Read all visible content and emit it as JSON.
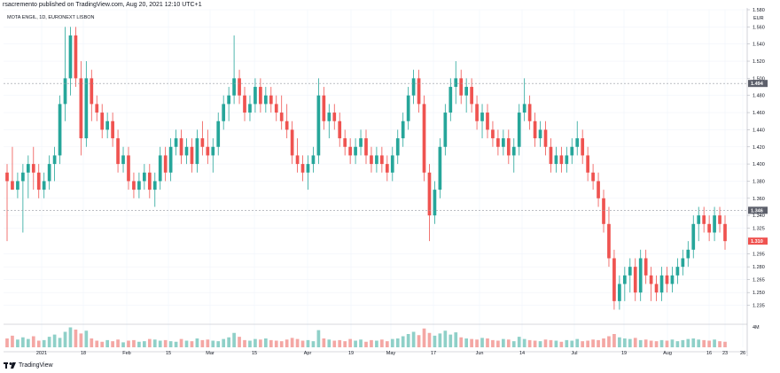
{
  "header": {
    "published_line": "rsacremento published on TradingView.com, Aug 20, 2021 12:10 UTC+1"
  },
  "footer": {
    "logo_text": "TradingView"
  },
  "colors": {
    "up": "#26a69a",
    "down": "#ef5350",
    "up_vol": "#8fd0c8",
    "down_vol": "#f4a7a4",
    "grid": "#f0f3fa",
    "axis_text": "#131722"
  },
  "chart_data": {
    "type": "candlestick",
    "title": "MOTA ENGIL, 1D, EURONEXT LISBON",
    "currency": "EUR",
    "ylim": [
      1.214,
      1.58
    ],
    "y_ticks": [
      "1.235",
      "1.250",
      "1.265",
      "1.280",
      "1.295",
      "1.325",
      "1.340",
      "1.360",
      "1.380",
      "1.400",
      "1.420",
      "1.440",
      "1.460",
      "1.480",
      "1.500",
      "1.520",
      "1.540",
      "1.560",
      "1.580"
    ],
    "x_tick_labels": [
      "2021",
      "18",
      "Feb",
      "15",
      "Mar",
      "15",
      "Apr",
      "19",
      "May",
      "17",
      "Jun",
      "14",
      "Jul",
      "19",
      "Aug",
      "16",
      "23",
      "26"
    ],
    "price_labels": [
      {
        "text": "1.494",
        "value": 1.494,
        "color": "#5d606b",
        "dashed": true
      },
      {
        "text": "1.346",
        "value": 1.346,
        "color": "#5d606b",
        "dashed": true
      },
      {
        "text": "1.310",
        "value": 1.31,
        "color": "#ef5350",
        "dashed": false
      }
    ],
    "volume_axis_label": "4M",
    "candles": [
      [
        1.39,
        1.4,
        1.31,
        1.38
      ],
      [
        1.38,
        1.42,
        1.37,
        1.37
      ],
      [
        1.37,
        1.39,
        1.36,
        1.38
      ],
      [
        1.38,
        1.4,
        1.32,
        1.39
      ],
      [
        1.39,
        1.41,
        1.36,
        1.4
      ],
      [
        1.4,
        1.42,
        1.37,
        1.39
      ],
      [
        1.39,
        1.4,
        1.36,
        1.37
      ],
      [
        1.37,
        1.39,
        1.36,
        1.38
      ],
      [
        1.38,
        1.41,
        1.37,
        1.4
      ],
      [
        1.4,
        1.42,
        1.38,
        1.41
      ],
      [
        1.41,
        1.48,
        1.4,
        1.47
      ],
      [
        1.47,
        1.56,
        1.45,
        1.5
      ],
      [
        1.5,
        1.56,
        1.48,
        1.55
      ],
      [
        1.55,
        1.56,
        1.49,
        1.5
      ],
      [
        1.5,
        1.52,
        1.41,
        1.43
      ],
      [
        1.43,
        1.52,
        1.42,
        1.5
      ],
      [
        1.5,
        1.51,
        1.45,
        1.47
      ],
      [
        1.47,
        1.48,
        1.45,
        1.46
      ],
      [
        1.46,
        1.47,
        1.43,
        1.44
      ],
      [
        1.44,
        1.46,
        1.43,
        1.45
      ],
      [
        1.45,
        1.46,
        1.42,
        1.43
      ],
      [
        1.43,
        1.44,
        1.39,
        1.4
      ],
      [
        1.4,
        1.42,
        1.39,
        1.41
      ],
      [
        1.41,
        1.42,
        1.37,
        1.38
      ],
      [
        1.38,
        1.39,
        1.36,
        1.37
      ],
      [
        1.37,
        1.39,
        1.36,
        1.38
      ],
      [
        1.38,
        1.4,
        1.37,
        1.39
      ],
      [
        1.39,
        1.4,
        1.36,
        1.37
      ],
      [
        1.37,
        1.39,
        1.35,
        1.38
      ],
      [
        1.38,
        1.42,
        1.37,
        1.41
      ],
      [
        1.41,
        1.42,
        1.38,
        1.39
      ],
      [
        1.39,
        1.43,
        1.38,
        1.42
      ],
      [
        1.42,
        1.44,
        1.41,
        1.43
      ],
      [
        1.43,
        1.44,
        1.4,
        1.41
      ],
      [
        1.41,
        1.43,
        1.4,
        1.42
      ],
      [
        1.42,
        1.43,
        1.39,
        1.4
      ],
      [
        1.4,
        1.44,
        1.39,
        1.43
      ],
      [
        1.43,
        1.45,
        1.41,
        1.42
      ],
      [
        1.42,
        1.44,
        1.4,
        1.41
      ],
      [
        1.41,
        1.43,
        1.39,
        1.42
      ],
      [
        1.42,
        1.46,
        1.41,
        1.45
      ],
      [
        1.45,
        1.48,
        1.44,
        1.47
      ],
      [
        1.47,
        1.49,
        1.45,
        1.48
      ],
      [
        1.48,
        1.55,
        1.47,
        1.5
      ],
      [
        1.5,
        1.51,
        1.47,
        1.48
      ],
      [
        1.48,
        1.49,
        1.45,
        1.46
      ],
      [
        1.46,
        1.48,
        1.45,
        1.47
      ],
      [
        1.47,
        1.5,
        1.46,
        1.49
      ],
      [
        1.49,
        1.5,
        1.46,
        1.47
      ],
      [
        1.47,
        1.49,
        1.46,
        1.48
      ],
      [
        1.48,
        1.49,
        1.46,
        1.47
      ],
      [
        1.47,
        1.48,
        1.45,
        1.46
      ],
      [
        1.46,
        1.48,
        1.44,
        1.45
      ],
      [
        1.45,
        1.47,
        1.43,
        1.44
      ],
      [
        1.44,
        1.45,
        1.4,
        1.41
      ],
      [
        1.41,
        1.43,
        1.39,
        1.4
      ],
      [
        1.4,
        1.41,
        1.38,
        1.39
      ],
      [
        1.39,
        1.41,
        1.37,
        1.4
      ],
      [
        1.4,
        1.42,
        1.39,
        1.41
      ],
      [
        1.41,
        1.5,
        1.4,
        1.48
      ],
      [
        1.48,
        1.49,
        1.44,
        1.45
      ],
      [
        1.45,
        1.47,
        1.43,
        1.46
      ],
      [
        1.46,
        1.47,
        1.44,
        1.45
      ],
      [
        1.45,
        1.46,
        1.42,
        1.43
      ],
      [
        1.43,
        1.44,
        1.41,
        1.42
      ],
      [
        1.42,
        1.43,
        1.4,
        1.41
      ],
      [
        1.41,
        1.43,
        1.4,
        1.42
      ],
      [
        1.42,
        1.44,
        1.41,
        1.43
      ],
      [
        1.43,
        1.44,
        1.4,
        1.41
      ],
      [
        1.41,
        1.42,
        1.39,
        1.4
      ],
      [
        1.4,
        1.42,
        1.39,
        1.41
      ],
      [
        1.41,
        1.42,
        1.39,
        1.4
      ],
      [
        1.4,
        1.41,
        1.38,
        1.39
      ],
      [
        1.39,
        1.42,
        1.38,
        1.41
      ],
      [
        1.41,
        1.44,
        1.4,
        1.43
      ],
      [
        1.43,
        1.46,
        1.42,
        1.45
      ],
      [
        1.45,
        1.49,
        1.44,
        1.48
      ],
      [
        1.48,
        1.51,
        1.47,
        1.5
      ],
      [
        1.5,
        1.51,
        1.46,
        1.47
      ],
      [
        1.47,
        1.48,
        1.38,
        1.39
      ],
      [
        1.39,
        1.4,
        1.31,
        1.34
      ],
      [
        1.34,
        1.38,
        1.33,
        1.37
      ],
      [
        1.37,
        1.43,
        1.36,
        1.42
      ],
      [
        1.42,
        1.47,
        1.41,
        1.46
      ],
      [
        1.46,
        1.5,
        1.45,
        1.49
      ],
      [
        1.49,
        1.52,
        1.47,
        1.5
      ],
      [
        1.5,
        1.51,
        1.47,
        1.48
      ],
      [
        1.48,
        1.5,
        1.46,
        1.49
      ],
      [
        1.49,
        1.5,
        1.46,
        1.47
      ],
      [
        1.47,
        1.48,
        1.44,
        1.45
      ],
      [
        1.45,
        1.47,
        1.43,
        1.46
      ],
      [
        1.46,
        1.47,
        1.43,
        1.44
      ],
      [
        1.44,
        1.45,
        1.42,
        1.43
      ],
      [
        1.43,
        1.44,
        1.41,
        1.42
      ],
      [
        1.42,
        1.44,
        1.41,
        1.43
      ],
      [
        1.43,
        1.44,
        1.4,
        1.41
      ],
      [
        1.41,
        1.43,
        1.39,
        1.42
      ],
      [
        1.42,
        1.47,
        1.41,
        1.46
      ],
      [
        1.46,
        1.5,
        1.45,
        1.47
      ],
      [
        1.47,
        1.48,
        1.44,
        1.45
      ],
      [
        1.45,
        1.46,
        1.42,
        1.43
      ],
      [
        1.43,
        1.45,
        1.42,
        1.44
      ],
      [
        1.44,
        1.45,
        1.41,
        1.42
      ],
      [
        1.42,
        1.43,
        1.39,
        1.4
      ],
      [
        1.4,
        1.42,
        1.39,
        1.41
      ],
      [
        1.41,
        1.42,
        1.39,
        1.4
      ],
      [
        1.4,
        1.42,
        1.39,
        1.41
      ],
      [
        1.41,
        1.43,
        1.4,
        1.42
      ],
      [
        1.42,
        1.45,
        1.41,
        1.43
      ],
      [
        1.43,
        1.44,
        1.4,
        1.41
      ],
      [
        1.41,
        1.42,
        1.38,
        1.39
      ],
      [
        1.39,
        1.4,
        1.37,
        1.38
      ],
      [
        1.38,
        1.39,
        1.35,
        1.36
      ],
      [
        1.36,
        1.37,
        1.32,
        1.33
      ],
      [
        1.33,
        1.35,
        1.28,
        1.29
      ],
      [
        1.29,
        1.3,
        1.23,
        1.24
      ],
      [
        1.24,
        1.27,
        1.23,
        1.26
      ],
      [
        1.26,
        1.28,
        1.24,
        1.27
      ],
      [
        1.27,
        1.29,
        1.25,
        1.28
      ],
      [
        1.28,
        1.29,
        1.24,
        1.25
      ],
      [
        1.25,
        1.3,
        1.24,
        1.29
      ],
      [
        1.29,
        1.3,
        1.26,
        1.27
      ],
      [
        1.27,
        1.28,
        1.24,
        1.26
      ],
      [
        1.26,
        1.27,
        1.24,
        1.25
      ],
      [
        1.25,
        1.28,
        1.24,
        1.27
      ],
      [
        1.27,
        1.28,
        1.25,
        1.26
      ],
      [
        1.26,
        1.28,
        1.25,
        1.27
      ],
      [
        1.27,
        1.29,
        1.26,
        1.28
      ],
      [
        1.28,
        1.3,
        1.27,
        1.29
      ],
      [
        1.29,
        1.31,
        1.28,
        1.3
      ],
      [
        1.3,
        1.34,
        1.29,
        1.33
      ],
      [
        1.33,
        1.35,
        1.31,
        1.34
      ],
      [
        1.34,
        1.35,
        1.32,
        1.33
      ],
      [
        1.33,
        1.34,
        1.31,
        1.32
      ],
      [
        1.32,
        1.35,
        1.31,
        1.34
      ],
      [
        1.34,
        1.35,
        1.32,
        1.33
      ],
      [
        1.33,
        1.34,
        1.3,
        1.31
      ]
    ],
    "volumes": [
      1.6,
      2.1,
      1.4,
      1.8,
      1.5,
      2.0,
      1.2,
      1.3,
      1.9,
      2.3,
      1.7,
      2.8,
      3.6,
      3.2,
      2.5,
      3.0,
      1.6,
      1.2,
      1.0,
      1.3,
      1.1,
      1.4,
      0.9,
      1.2,
      1.3,
      1.0,
      1.1,
      1.5,
      1.4,
      1.2,
      1.3,
      1.1,
      1.0,
      1.5,
      1.2,
      1.1,
      1.6,
      1.3,
      1.4,
      1.2,
      1.1,
      1.5,
      1.8,
      2.6,
      1.9,
      1.3,
      1.2,
      1.5,
      1.4,
      1.6,
      1.3,
      1.2,
      1.1,
      1.4,
      1.7,
      1.5,
      1.2,
      1.3,
      1.1,
      3.1,
      1.6,
      1.4,
      1.2,
      1.3,
      1.1,
      1.5,
      1.2,
      1.4,
      1.0,
      1.3,
      1.2,
      1.4,
      1.1,
      1.5,
      1.6,
      2.0,
      2.4,
      2.8,
      2.2,
      3.4,
      2.6,
      2.1,
      2.5,
      3.0,
      2.3,
      2.7,
      1.8,
      1.6,
      1.5,
      1.4,
      1.7,
      1.6,
      1.3,
      1.2,
      1.5,
      1.4,
      1.1,
      1.9,
      1.5,
      1.3,
      1.2,
      1.1,
      1.4,
      1.3,
      1.2,
      1.0,
      1.3,
      1.2,
      1.5,
      1.1,
      1.2,
      1.4,
      1.3,
      1.6,
      2.0,
      2.4,
      1.8,
      1.6,
      1.5,
      1.7,
      1.3,
      1.4,
      1.2,
      1.1,
      1.3,
      1.2,
      1.4,
      1.1,
      1.3,
      1.5,
      1.6,
      1.4,
      1.3,
      1.2,
      1.4,
      1.1,
      1.0
    ]
  }
}
